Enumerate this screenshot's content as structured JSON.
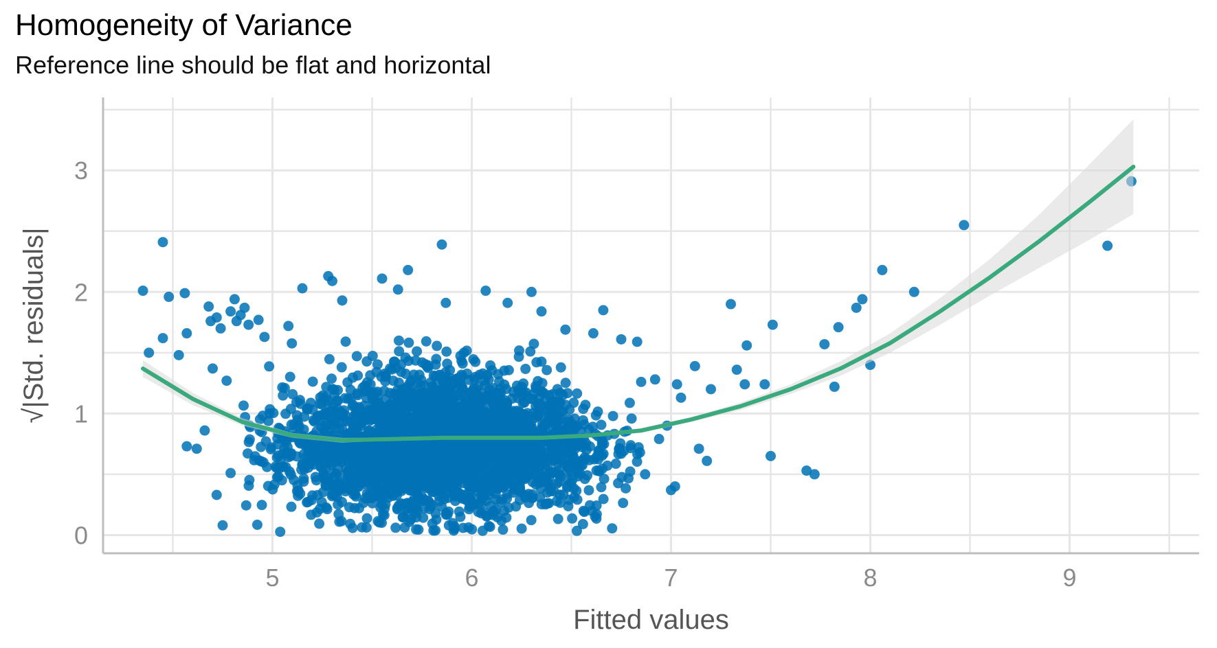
{
  "title": "Homogeneity of Variance",
  "subtitle": "Reference line should be flat and horizontal",
  "chart_data": {
    "type": "scatter",
    "title": "Homogeneity of Variance",
    "subtitle": "Reference line should be flat and horizontal",
    "xlabel": "Fitted values",
    "ylabel": "√|Std. residuals|",
    "xlim": [
      4.15,
      9.65
    ],
    "ylim": [
      -0.15,
      3.6
    ],
    "x_ticks": [
      5,
      6,
      7,
      8,
      9
    ],
    "y_ticks": [
      0,
      1,
      2,
      3
    ],
    "x_tick_labels": [
      "5",
      "6",
      "7",
      "8",
      "9"
    ],
    "y_tick_labels": [
      "0",
      "1",
      "2",
      "3"
    ],
    "grid": true,
    "colors": {
      "points": "#0072B5",
      "smooth_line": "#3AAA7E",
      "ribbon": "#D9D9D9",
      "grid": "#E6E6E6",
      "axis": "#BDBDBD"
    },
    "cluster": {
      "description_points_count": 3000,
      "x_range": [
        4.85,
        6.85
      ],
      "y_range": [
        0.02,
        1.6
      ]
    },
    "points": [
      [
        4.35,
        2.01
      ],
      [
        4.38,
        1.5
      ],
      [
        4.45,
        2.41
      ],
      [
        4.45,
        1.62
      ],
      [
        4.48,
        1.96
      ],
      [
        4.53,
        1.48
      ],
      [
        4.56,
        1.99
      ],
      [
        4.57,
        1.66
      ],
      [
        4.57,
        0.73
      ],
      [
        4.62,
        0.71
      ],
      [
        4.66,
        0.86
      ],
      [
        4.68,
        1.88
      ],
      [
        4.69,
        1.76
      ],
      [
        4.7,
        1.37
      ],
      [
        4.72,
        1.79
      ],
      [
        4.74,
        1.7
      ],
      [
        4.77,
        1.27
      ],
      [
        4.79,
        1.84
      ],
      [
        4.81,
        1.94
      ],
      [
        4.82,
        1.76
      ],
      [
        4.84,
        1.81
      ],
      [
        4.86,
        1.87
      ],
      [
        4.88,
        1.73
      ],
      [
        4.72,
        0.33
      ],
      [
        4.75,
        0.08
      ],
      [
        4.79,
        0.51
      ],
      [
        4.93,
        1.77
      ],
      [
        4.96,
        1.63
      ],
      [
        5.08,
        1.72
      ],
      [
        5.15,
        2.03
      ],
      [
        5.28,
        2.13
      ],
      [
        5.3,
        2.09
      ],
      [
        5.35,
        1.93
      ],
      [
        5.55,
        2.11
      ],
      [
        5.63,
        2.02
      ],
      [
        5.68,
        2.18
      ],
      [
        5.85,
        2.39
      ],
      [
        5.87,
        1.91
      ],
      [
        6.07,
        2.01
      ],
      [
        6.18,
        1.91
      ],
      [
        6.3,
        2.0
      ],
      [
        6.35,
        1.84
      ],
      [
        6.47,
        1.69
      ],
      [
        6.66,
        1.85
      ],
      [
        6.61,
        1.66
      ],
      [
        6.75,
        1.61
      ],
      [
        6.83,
        1.59
      ],
      [
        6.85,
        1.26
      ],
      [
        6.92,
        1.28
      ],
      [
        6.98,
        0.9
      ],
      [
        7.03,
        1.24
      ],
      [
        7.05,
        1.13
      ],
      [
        7.12,
        1.39
      ],
      [
        7.2,
        1.2
      ],
      [
        7.3,
        1.9
      ],
      [
        7.33,
        1.36
      ],
      [
        7.37,
        1.24
      ],
      [
        7.38,
        1.56
      ],
      [
        7.47,
        1.24
      ],
      [
        7.51,
        1.73
      ],
      [
        7.14,
        0.71
      ],
      [
        7.18,
        0.61
      ],
      [
        7.5,
        0.65
      ],
      [
        7.68,
        0.53
      ],
      [
        7.72,
        0.5
      ],
      [
        7.77,
        1.57
      ],
      [
        7.82,
        1.22
      ],
      [
        7.84,
        1.71
      ],
      [
        7.93,
        1.87
      ],
      [
        7.96,
        1.94
      ],
      [
        8.0,
        1.4
      ],
      [
        8.06,
        2.18
      ],
      [
        8.22,
        2.0
      ],
      [
        8.47,
        2.55
      ],
      [
        9.19,
        2.38
      ],
      [
        9.31,
        2.91
      ],
      [
        7.02,
        0.4
      ],
      [
        7.0,
        0.37
      ],
      [
        6.94,
        0.79
      ],
      [
        6.87,
        0.5
      ]
    ],
    "smooth_line": {
      "x": [
        4.35,
        4.6,
        4.85,
        5.1,
        5.35,
        5.6,
        5.85,
        6.1,
        6.35,
        6.6,
        6.85,
        7.1,
        7.35,
        7.6,
        7.85,
        8.1,
        8.35,
        8.6,
        8.85,
        9.1,
        9.32
      ],
      "y": [
        1.37,
        1.12,
        0.93,
        0.82,
        0.78,
        0.79,
        0.8,
        0.8,
        0.8,
        0.82,
        0.86,
        0.95,
        1.06,
        1.2,
        1.37,
        1.58,
        1.84,
        2.12,
        2.42,
        2.74,
        3.03
      ],
      "upper": [
        1.44,
        1.17,
        0.96,
        0.84,
        0.8,
        0.8,
        0.81,
        0.81,
        0.81,
        0.83,
        0.88,
        0.97,
        1.09,
        1.24,
        1.43,
        1.66,
        1.95,
        2.27,
        2.64,
        3.05,
        3.42
      ],
      "lower": [
        1.3,
        1.07,
        0.9,
        0.8,
        0.76,
        0.78,
        0.79,
        0.79,
        0.79,
        0.81,
        0.84,
        0.93,
        1.03,
        1.16,
        1.31,
        1.5,
        1.73,
        1.97,
        2.2,
        2.43,
        2.64
      ]
    }
  }
}
